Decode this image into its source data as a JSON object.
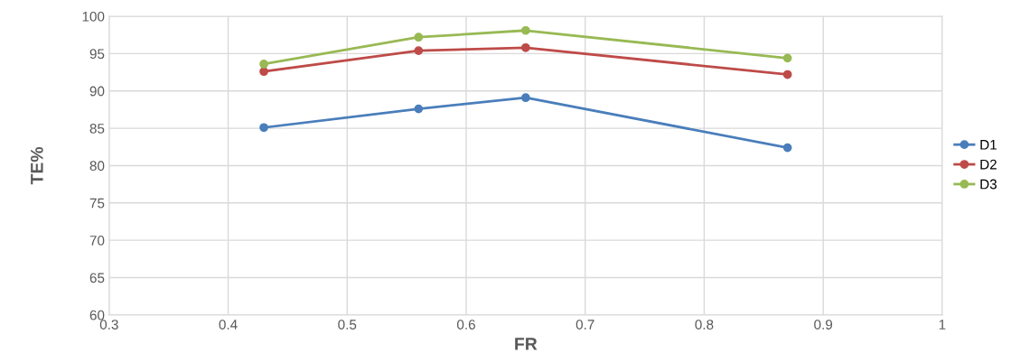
{
  "chart_data": {
    "type": "line",
    "xlabel": "FR",
    "ylabel": "TE%",
    "x": [
      0.43,
      0.56,
      0.65,
      0.87
    ],
    "series": [
      {
        "name": "D1",
        "color": "#4a7ebb",
        "values": [
          85.1,
          87.6,
          89.1,
          82.4
        ]
      },
      {
        "name": "D2",
        "color": "#be4b48",
        "values": [
          92.6,
          95.4,
          95.8,
          92.2
        ]
      },
      {
        "name": "D3",
        "color": "#98b954",
        "values": [
          93.6,
          97.2,
          98.1,
          94.4
        ]
      }
    ],
    "xlim": [
      0.3,
      1
    ],
    "xticks": [
      0.3,
      0.4,
      0.5,
      0.6,
      0.7,
      0.8,
      0.9,
      1
    ],
    "ylim": [
      60,
      100
    ],
    "yticks": [
      60,
      65,
      70,
      75,
      80,
      85,
      90,
      95,
      100
    ],
    "grid": true,
    "legend": "right",
    "marker": "circle",
    "line_style": "solid"
  }
}
